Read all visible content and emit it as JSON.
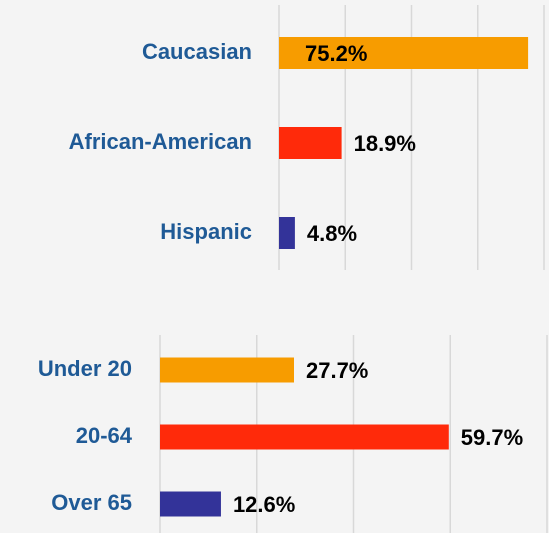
{
  "chart_data": [
    {
      "type": "bar",
      "orientation": "horizontal",
      "categories": [
        "Caucasian",
        "African-American",
        "Hispanic"
      ],
      "values": [
        75.2,
        18.9,
        4.8
      ],
      "value_labels": [
        "75.2%",
        "18.9%",
        "4.8%"
      ],
      "colors": [
        "#f79c00",
        "#ff2a0a",
        "#333399"
      ],
      "xlim": [
        0,
        80
      ],
      "xticks": [
        0,
        20,
        40,
        60,
        80
      ],
      "grid": true
    },
    {
      "type": "bar",
      "orientation": "horizontal",
      "categories": [
        "Under 20",
        "20-64",
        "Over 65"
      ],
      "values": [
        27.7,
        59.7,
        12.6
      ],
      "value_labels": [
        "27.7%",
        "59.7%",
        "12.6%"
      ],
      "colors": [
        "#f79c00",
        "#ff2a0a",
        "#333399"
      ],
      "xlim": [
        0,
        80
      ],
      "xticks": [
        0,
        20,
        40,
        60,
        80
      ],
      "grid": true
    }
  ]
}
